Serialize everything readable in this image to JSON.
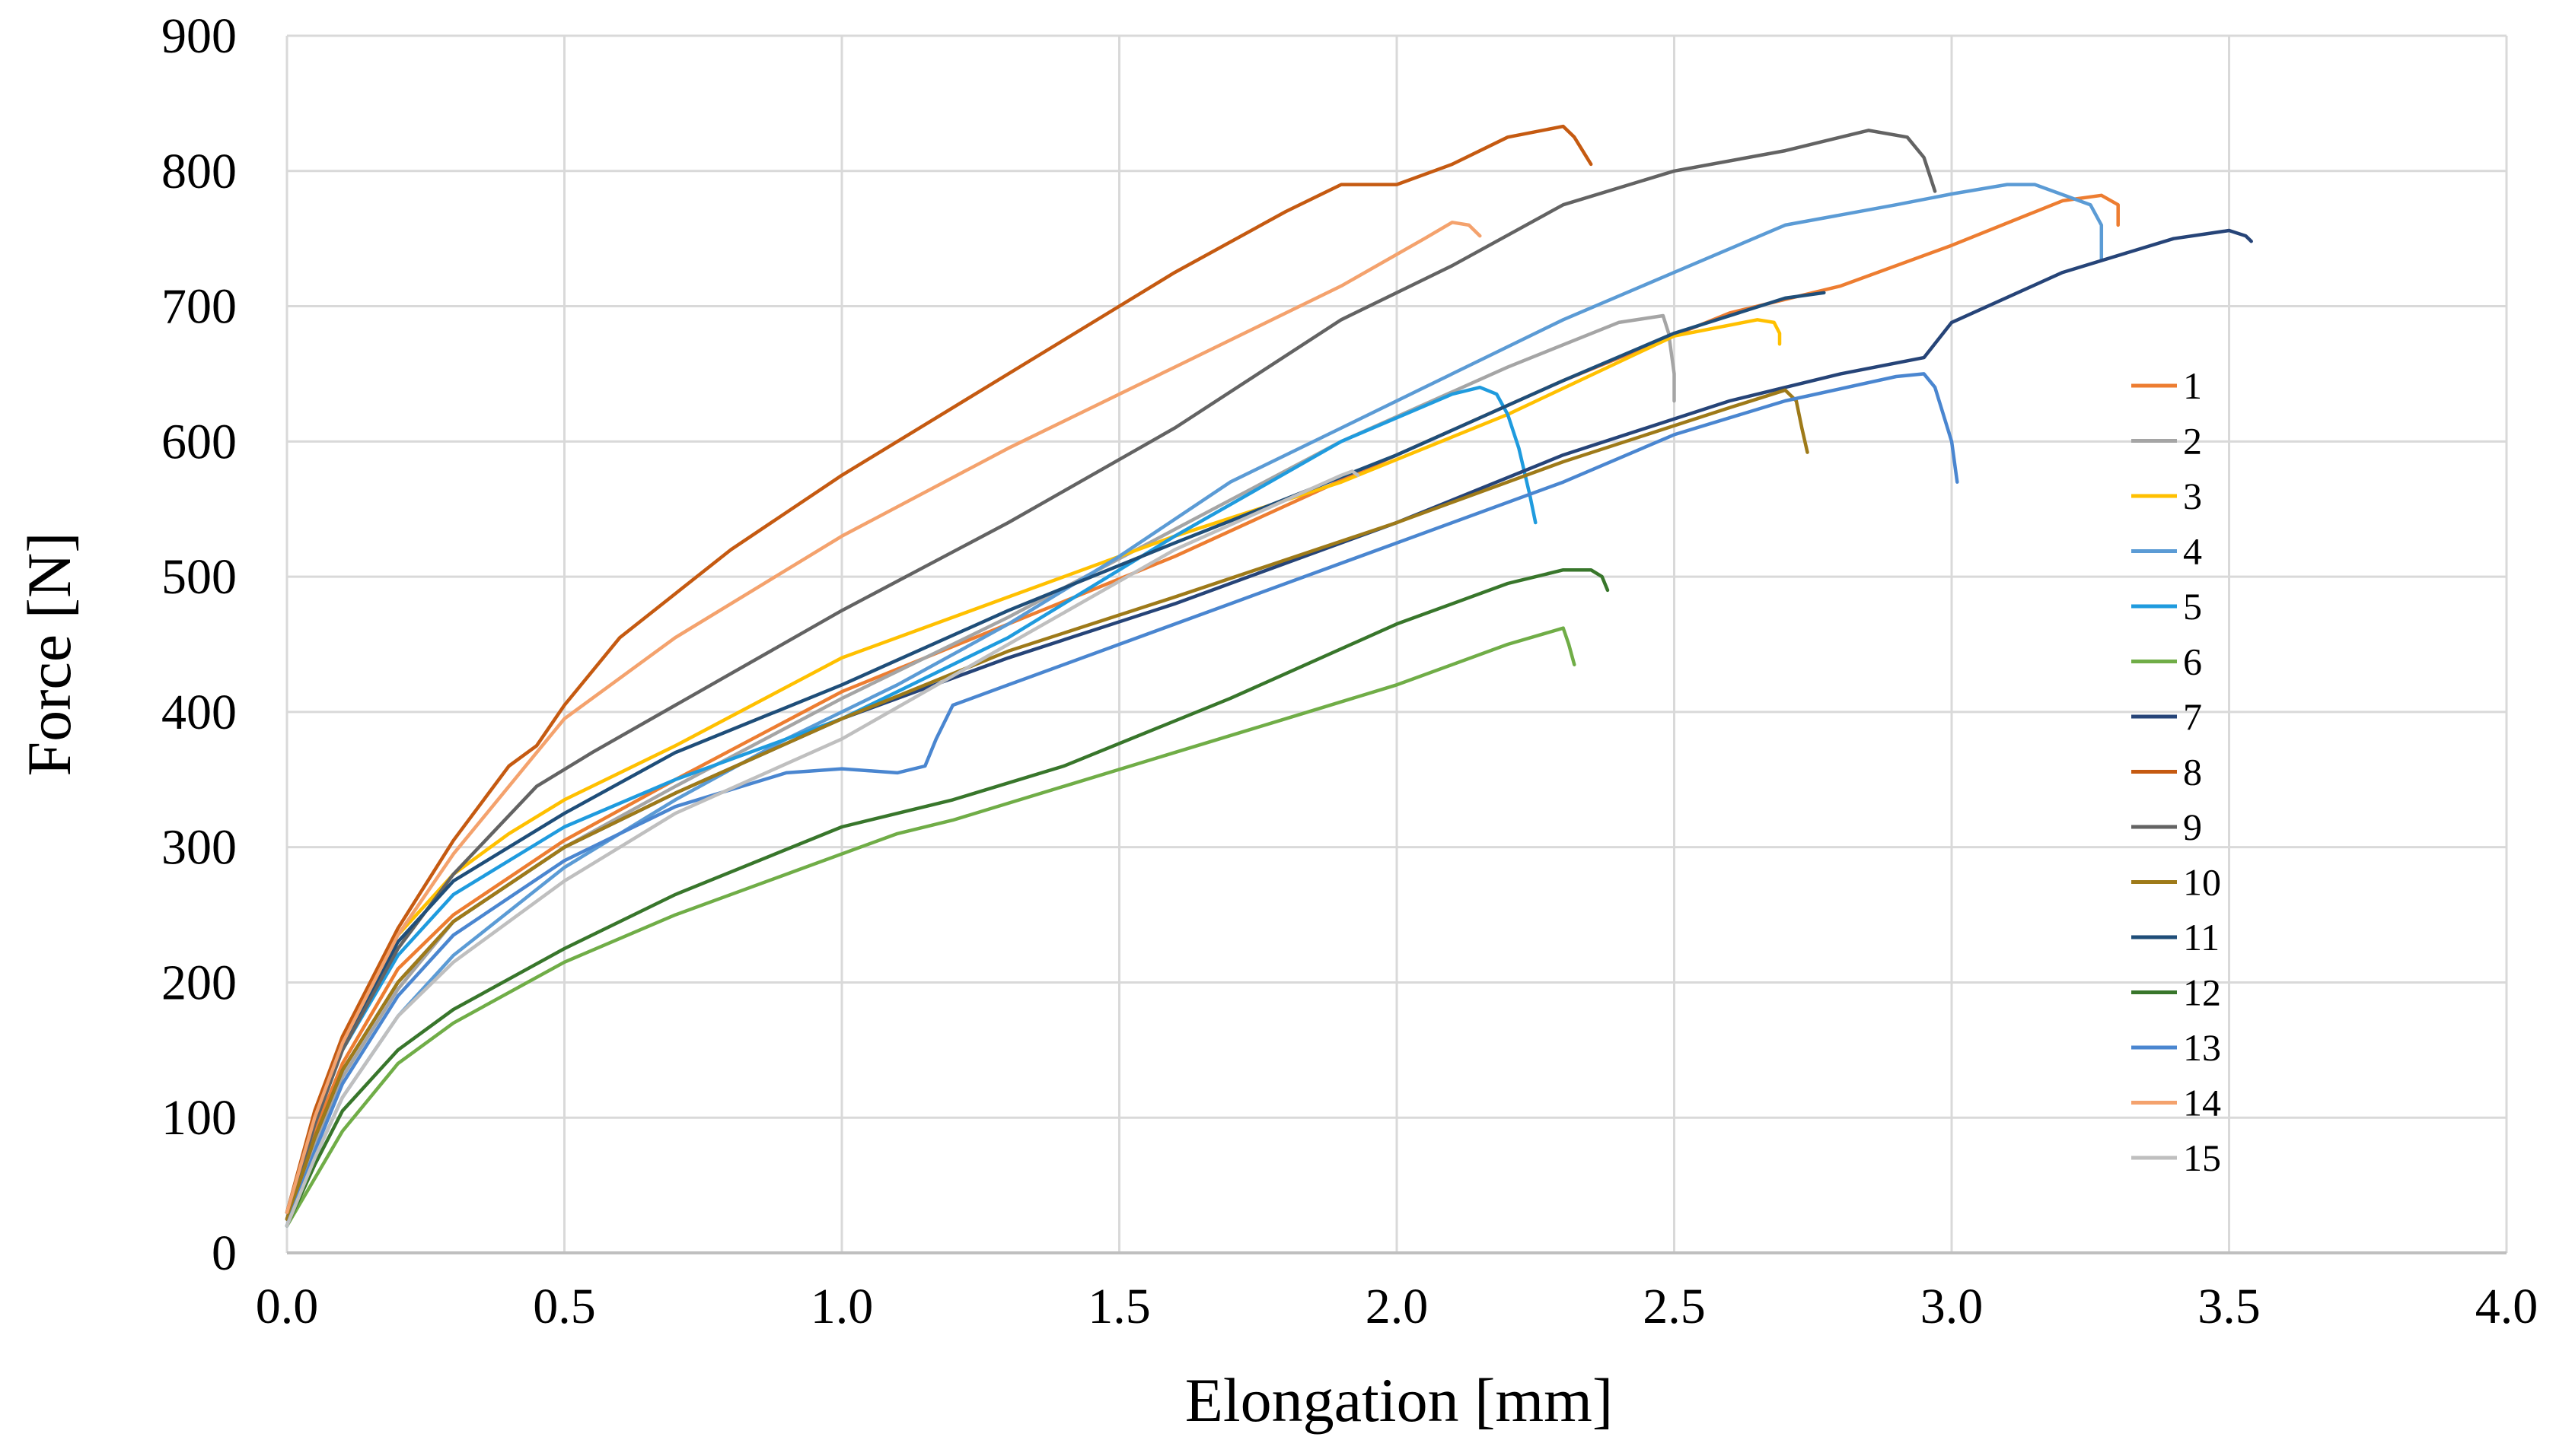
{
  "chart_data": {
    "type": "line",
    "title": "",
    "xlabel": "Elongation [mm]",
    "ylabel": "Force [N]",
    "xlim": [
      0.0,
      4.0
    ],
    "ylim": [
      0,
      900
    ],
    "grid": true,
    "legend_position": "right",
    "x_tick_labels": [
      "0.0",
      "0.5",
      "1.0",
      "1.5",
      "2.0",
      "2.5",
      "3.0",
      "3.5",
      "4.0"
    ],
    "y_tick_labels": [
      "0",
      "100",
      "200",
      "300",
      "400",
      "500",
      "600",
      "700",
      "800",
      "900"
    ],
    "series": [
      {
        "name": "1",
        "color": "#ED7D31",
        "x": [
          0,
          0.05,
          0.1,
          0.2,
          0.3,
          0.5,
          0.7,
          1.0,
          1.3,
          1.6,
          2.0,
          2.3,
          2.6,
          2.8,
          3.0,
          3.2,
          3.27,
          3.3,
          3.3
        ],
        "y": [
          25,
          90,
          140,
          210,
          250,
          305,
          350,
          415,
          465,
          515,
          590,
          645,
          695,
          715,
          745,
          778,
          782,
          775,
          760
        ]
      },
      {
        "name": "2",
        "color": "#A5A5A5",
        "x": [
          0,
          0.05,
          0.1,
          0.2,
          0.3,
          0.5,
          0.7,
          1.0,
          1.3,
          1.6,
          1.9,
          2.2,
          2.4,
          2.48,
          2.49,
          2.5,
          2.5
        ],
        "y": [
          20,
          80,
          130,
          195,
          245,
          300,
          345,
          410,
          470,
          535,
          600,
          655,
          688,
          693,
          680,
          650,
          630
        ]
      },
      {
        "name": "3",
        "color": "#FFC000",
        "x": [
          0,
          0.05,
          0.1,
          0.2,
          0.3,
          0.4,
          0.5,
          0.7,
          1.0,
          1.3,
          1.6,
          1.9,
          2.2,
          2.5,
          2.65,
          2.68,
          2.69,
          2.69
        ],
        "y": [
          30,
          100,
          160,
          235,
          280,
          310,
          335,
          375,
          440,
          485,
          530,
          570,
          620,
          678,
          690,
          688,
          680,
          672
        ]
      },
      {
        "name": "4",
        "color": "#5B9BD5",
        "x": [
          0,
          0.05,
          0.1,
          0.2,
          0.3,
          0.5,
          0.7,
          0.9,
          1.1,
          1.3,
          1.5,
          1.7,
          1.9,
          2.1,
          2.3,
          2.5,
          2.7,
          2.9,
          3.0,
          3.1,
          3.15,
          3.25,
          3.27,
          3.27
        ],
        "y": [
          20,
          70,
          115,
          175,
          220,
          285,
          335,
          380,
          420,
          465,
          515,
          570,
          610,
          650,
          690,
          725,
          760,
          775,
          783,
          790,
          790,
          775,
          760,
          735
        ]
      },
      {
        "name": "5",
        "color": "#1F9BDE",
        "x": [
          0,
          0.05,
          0.1,
          0.2,
          0.3,
          0.5,
          0.7,
          1.0,
          1.3,
          1.6,
          1.9,
          2.1,
          2.15,
          2.18,
          2.2,
          2.22,
          2.24,
          2.25
        ],
        "y": [
          30,
          95,
          150,
          220,
          265,
          315,
          350,
          395,
          455,
          530,
          600,
          635,
          640,
          635,
          620,
          595,
          560,
          540
        ]
      },
      {
        "name": "6",
        "color": "#70AD47",
        "x": [
          0,
          0.1,
          0.2,
          0.3,
          0.5,
          0.7,
          0.9,
          1.1,
          1.2,
          1.4,
          1.6,
          1.8,
          2.0,
          2.2,
          2.3,
          2.31,
          2.32
        ],
        "y": [
          20,
          90,
          140,
          170,
          215,
          250,
          280,
          310,
          320,
          345,
          370,
          395,
          420,
          450,
          462,
          450,
          435
        ]
      },
      {
        "name": "7",
        "color": "#264478",
        "x": [
          0,
          0.05,
          0.1,
          0.2,
          0.3,
          0.5,
          0.7,
          1.0,
          1.3,
          1.6,
          2.0,
          2.3,
          2.6,
          2.8,
          2.95,
          3.0,
          3.2,
          3.4,
          3.5,
          3.53,
          3.54
        ],
        "y": [
          25,
          85,
          135,
          200,
          245,
          300,
          340,
          395,
          440,
          480,
          540,
          590,
          630,
          650,
          662,
          688,
          725,
          750,
          756,
          752,
          748
        ]
      },
      {
        "name": "8",
        "color": "#C55A11",
        "x": [
          0,
          0.05,
          0.1,
          0.2,
          0.3,
          0.4,
          0.45,
          0.5,
          0.6,
          0.8,
          1.0,
          1.2,
          1.4,
          1.6,
          1.8,
          1.9,
          2.0,
          2.1,
          2.2,
          2.3,
          2.32,
          2.35
        ],
        "y": [
          30,
          105,
          160,
          240,
          305,
          360,
          375,
          405,
          455,
          520,
          575,
          625,
          675,
          725,
          770,
          790,
          790,
          805,
          825,
          833,
          825,
          805
        ]
      },
      {
        "name": "9",
        "color": "#636363",
        "x": [
          0,
          0.05,
          0.1,
          0.2,
          0.3,
          0.45,
          0.55,
          0.7,
          1.0,
          1.3,
          1.6,
          1.9,
          2.1,
          2.3,
          2.5,
          2.7,
          2.85,
          2.92,
          2.95,
          2.97
        ],
        "y": [
          25,
          95,
          150,
          225,
          280,
          345,
          370,
          405,
          475,
          540,
          610,
          690,
          730,
          775,
          800,
          815,
          830,
          825,
          810,
          785
        ]
      },
      {
        "name": "10",
        "color": "#9E7A19",
        "x": [
          0,
          0.05,
          0.1,
          0.2,
          0.3,
          0.5,
          0.7,
          1.0,
          1.3,
          1.6,
          2.0,
          2.3,
          2.6,
          2.7,
          2.72,
          2.73,
          2.74
        ],
        "y": [
          25,
          85,
          135,
          200,
          245,
          300,
          340,
          395,
          445,
          485,
          540,
          585,
          625,
          638,
          630,
          610,
          592
        ]
      },
      {
        "name": "11",
        "color": "#1F4E79",
        "x": [
          0,
          0.05,
          0.1,
          0.2,
          0.3,
          0.5,
          0.7,
          1.0,
          1.3,
          1.6,
          2.0,
          2.3,
          2.5,
          2.7,
          2.77
        ],
        "y": [
          30,
          100,
          155,
          230,
          275,
          325,
          370,
          420,
          475,
          525,
          590,
          645,
          680,
          706,
          710
        ]
      },
      {
        "name": "12",
        "color": "#38762B",
        "x": [
          0,
          0.05,
          0.1,
          0.2,
          0.3,
          0.5,
          0.7,
          1.0,
          1.2,
          1.4,
          1.7,
          2.0,
          2.2,
          2.3,
          2.35,
          2.37,
          2.38
        ],
        "y": [
          20,
          65,
          105,
          150,
          180,
          225,
          265,
          315,
          335,
          360,
          410,
          465,
          495,
          505,
          505,
          500,
          490
        ]
      },
      {
        "name": "13",
        "color": "#4A86D0",
        "x": [
          0,
          0.05,
          0.1,
          0.2,
          0.3,
          0.5,
          0.7,
          0.9,
          1.0,
          1.1,
          1.15,
          1.17,
          1.2,
          1.3,
          1.5,
          1.7,
          2.0,
          2.3,
          2.5,
          2.7,
          2.9,
          2.95,
          2.97,
          3.0,
          3.01
        ],
        "y": [
          20,
          75,
          125,
          190,
          235,
          290,
          330,
          355,
          358,
          355,
          360,
          380,
          405,
          420,
          450,
          480,
          525,
          570,
          605,
          630,
          648,
          650,
          640,
          600,
          570
        ]
      },
      {
        "name": "14",
        "color": "#F4A26D",
        "x": [
          0,
          0.05,
          0.1,
          0.2,
          0.3,
          0.5,
          0.7,
          1.0,
          1.3,
          1.6,
          1.9,
          2.05,
          2.1,
          2.13,
          2.15
        ],
        "y": [
          30,
          100,
          155,
          235,
          295,
          395,
          455,
          530,
          595,
          655,
          715,
          750,
          762,
          760,
          752
        ]
      },
      {
        "name": "15",
        "color": "#BFBFBF",
        "x": [
          0,
          0.05,
          0.1,
          0.2,
          0.3,
          0.5,
          0.7,
          1.0,
          1.3,
          1.6,
          1.9,
          1.92,
          1.93
        ],
        "y": [
          20,
          70,
          115,
          175,
          215,
          275,
          325,
          380,
          450,
          520,
          575,
          578,
          575
        ]
      }
    ]
  }
}
